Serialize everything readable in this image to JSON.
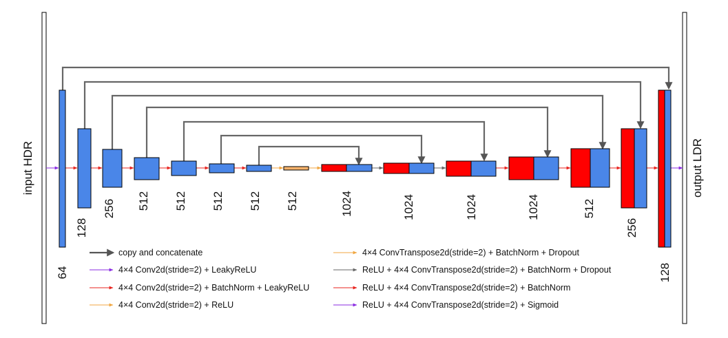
{
  "io": {
    "input_label": "input HDR",
    "output_label": "output LDR"
  },
  "encoder": [
    {
      "channels": "64"
    },
    {
      "channels": "128"
    },
    {
      "channels": "256"
    },
    {
      "channels": "512"
    },
    {
      "channels": "512"
    },
    {
      "channels": "512"
    },
    {
      "channels": "512"
    },
    {
      "channels": "512"
    }
  ],
  "decoder": [
    {
      "channels": "1024"
    },
    {
      "channels": "1024"
    },
    {
      "channels": "1024"
    },
    {
      "channels": "1024"
    },
    {
      "channels": "512"
    },
    {
      "channels": "256"
    },
    {
      "channels": "128"
    }
  ],
  "legend": [
    {
      "text": "copy and concatenate",
      "color": "#555555",
      "style": "thick"
    },
    {
      "text": "4×4 Conv2d(stride=2) + LeakyReLU",
      "color": "#8a2be2",
      "style": "thin"
    },
    {
      "text": "4×4 Conv2d(stride=2) + BatchNorm + LeakyReLU",
      "color": "#e8231e",
      "style": "thin"
    },
    {
      "text": "4×4 Conv2d(stride=2) + ReLU",
      "color": "#f0a640",
      "style": "thin"
    },
    {
      "text": "4×4 ConvTranspose2d(stride=2) + BatchNorm + Dropout",
      "color": "#f0a640",
      "style": "thin"
    },
    {
      "text": "ReLU + 4×4 ConvTranspose2d(stride=2) + BatchNorm + Dropout",
      "color": "#666666",
      "style": "thin"
    },
    {
      "text": "ReLU + 4×4 ConvTranspose2d(stride=2) + BatchNorm",
      "color": "#e8231e",
      "style": "thin"
    },
    {
      "text": "ReLU + 4×4 ConvTranspose2d(stride=2) + Sigmoid",
      "color": "#8a2be2",
      "style": "thin"
    }
  ],
  "colors": {
    "block_blue": "#4a86e8",
    "block_red": "#ff0000",
    "block_orange": "#f6b26b",
    "skip": "#666666"
  }
}
